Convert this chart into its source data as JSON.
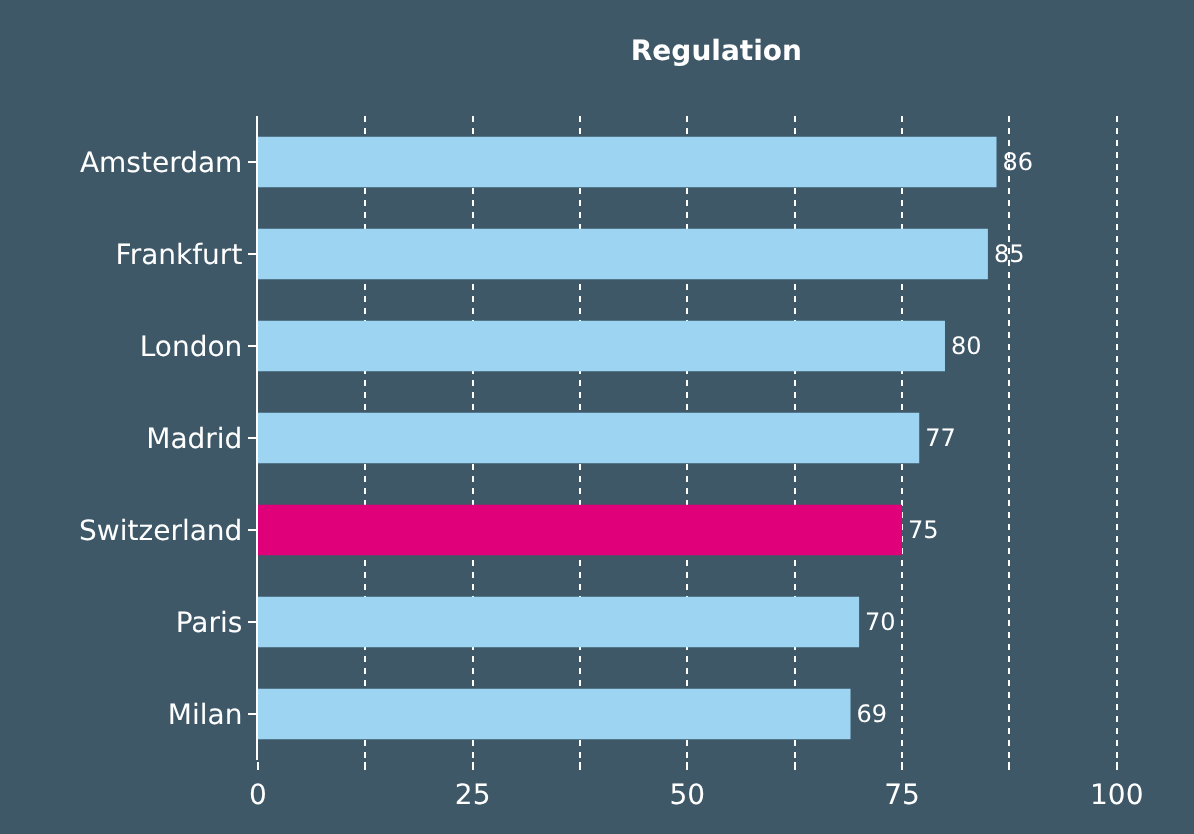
{
  "chart_data": {
    "type": "bar",
    "orientation": "horizontal",
    "title": "Regulation",
    "categories": [
      "Amsterdam",
      "Frankfurt",
      "London",
      "Madrid",
      "Switzerland",
      "Paris",
      "Milan"
    ],
    "values": [
      86,
      85,
      80,
      77,
      75,
      70,
      69
    ],
    "colors": [
      "#9dd4f2",
      "#9dd4f2",
      "#9dd4f2",
      "#9dd4f2",
      "#e0007a",
      "#9dd4f2",
      "#9dd4f2"
    ],
    "xlim": [
      0,
      109
    ],
    "xticks": [
      0,
      {
        "value": 12.5,
        "label": null
      },
      25,
      {
        "value": 37.5,
        "label": null
      },
      50,
      {
        "value": 62.5,
        "label": null
      },
      75,
      {
        "value": 87.5,
        "label": null
      },
      100
    ],
    "grid": "x",
    "data_labels": true
  }
}
